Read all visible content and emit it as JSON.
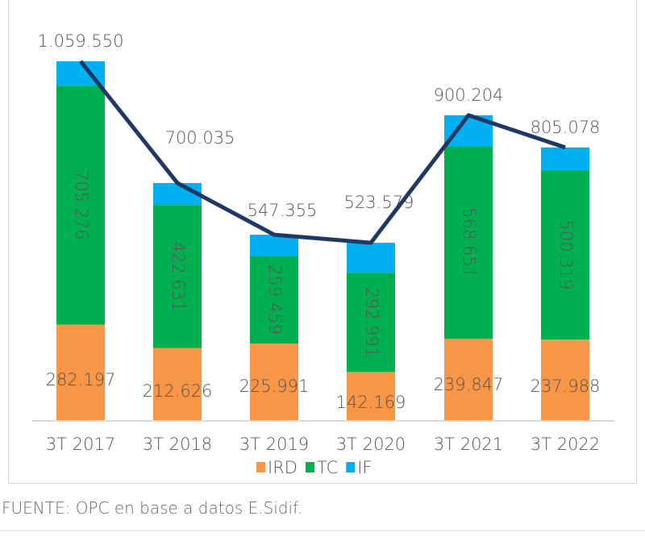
{
  "chart_data": {
    "type": "bar",
    "stacked": true,
    "categories": [
      "3T 2017",
      "3T 2018",
      "3T 2019",
      "3T 2020",
      "3T 2021",
      "3T 2022"
    ],
    "series": [
      {
        "name": "IRD",
        "color": "#F79646",
        "values": [
          282197,
          212626,
          225991,
          142169,
          239847,
          237988
        ],
        "labels": [
          "282.197",
          "212.626",
          "225.991",
          "142.169",
          "239.847",
          "237.988"
        ]
      },
      {
        "name": "TC",
        "color": "#00B050",
        "values": [
          705276,
          422631,
          259459,
          292991,
          568651,
          500319
        ],
        "labels": [
          "705.276",
          "422.631",
          "259.459",
          "292.991",
          "568.651",
          "500.319"
        ]
      },
      {
        "name": "IF",
        "color": "#00B0F0",
        "values": [
          72077,
          64778,
          61905,
          88419,
          91706,
          66771
        ]
      }
    ],
    "total_line": {
      "color": "#1F3864",
      "values": [
        1059550,
        700035,
        547355,
        523579,
        900204,
        805078
      ],
      "labels": [
        "1.059.550",
        "700.035",
        "547.355",
        "523.579",
        "900.204",
        "805.078"
      ]
    },
    "legend_position": "bottom",
    "grid": false
  },
  "footer": "FUENTE: OPC en base a datos E.Sidif."
}
